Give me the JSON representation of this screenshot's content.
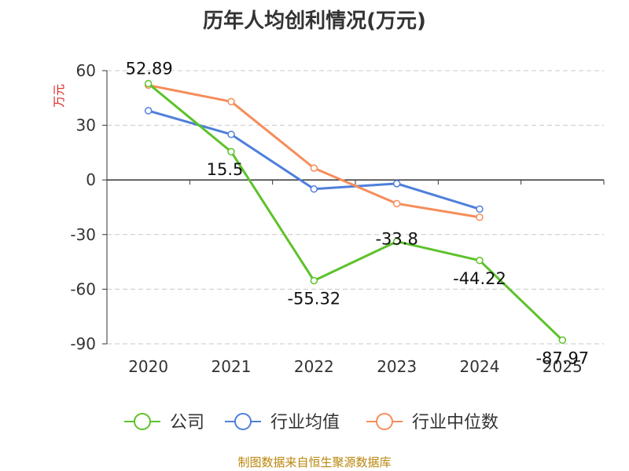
{
  "chart_data": {
    "type": "line",
    "title": "历年人均创利情况(万元)",
    "ylabel": "万元",
    "xlabel": "",
    "categories": [
      "2020",
      "2021",
      "2022",
      "2023",
      "2024",
      "2025"
    ],
    "ylim": [
      -90,
      60
    ],
    "yticks": [
      60,
      30,
      0,
      -30,
      -60,
      -90
    ],
    "grid": true,
    "legend_position": "bottom",
    "series": [
      {
        "name": "公司",
        "color": "#5dc22a",
        "values": [
          52.89,
          15.5,
          -55.32,
          -33.8,
          -44.22,
          -87.97
        ],
        "labels": [
          "52.89",
          "15.5",
          "-55.32",
          "-33.8",
          "-44.22",
          "-87.97"
        ]
      },
      {
        "name": "行业均值",
        "color": "#4f7fdb",
        "values": [
          38,
          25,
          -5,
          -2,
          -16,
          null
        ]
      },
      {
        "name": "行业中位数",
        "color": "#f68d5a",
        "values": [
          52,
          43,
          6.5,
          -13,
          -20.5,
          null
        ]
      }
    ]
  },
  "source": "制图数据来自恒生聚源数据库"
}
